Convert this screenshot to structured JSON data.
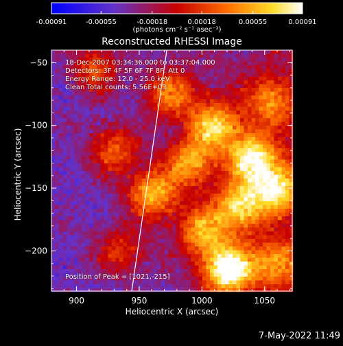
{
  "chart_data": {
    "type": "heatmap",
    "title": "Reconstructed RHESSI Image",
    "xlabel": "Heliocentric X (arcsec)",
    "ylabel": "Heliocentric Y (arcsec)",
    "xlim": [
      880,
      1072
    ],
    "ylim": [
      -232,
      -40
    ],
    "xticks": [
      900,
      950,
      1000,
      1050
    ],
    "yticks": [
      -50,
      -100,
      -150,
      -200
    ],
    "colorbar": {
      "colormap": "red-temperature",
      "range": [
        -0.00091,
        0.00091
      ],
      "tick_values": [
        -0.00091,
        -0.00055,
        -0.00018,
        0.00018,
        0.00055,
        0.00091
      ],
      "tick_labels": [
        "-0.00091",
        "-0.00055",
        "-0.00018",
        "0.00018",
        "0.00055",
        "0.00091"
      ],
      "units_label": "(photons cm⁻² s⁻¹ asec⁻²)"
    },
    "annotations": [
      "18-Dec-2007 03:34:36.000 to 03:37:04.000",
      "Detectors: 3F 4F 5F 6F 7F 8F, Att 0",
      "Energy Range: 12.0 - 25.0 keV",
      "Clean      Total counts: 5.56E+03"
    ],
    "peak_label": "Position of Peak = [1021,-215]",
    "peak": [
      1021,
      -215
    ],
    "limb_line": [
      [
        944,
        -232
      ],
      [
        972,
        -40
      ]
    ],
    "blobs": [
      {
        "x": 1021,
        "y": -215,
        "intensity": 1.0
      },
      {
        "x": 1040,
        "y": -125,
        "intensity": 0.8
      },
      {
        "x": 1060,
        "y": -150,
        "intensity": 0.75
      },
      {
        "x": 1010,
        "y": -100,
        "intensity": 0.7
      },
      {
        "x": 1030,
        "y": -165,
        "intensity": 0.72
      },
      {
        "x": 960,
        "y": -155,
        "intensity": 0.7
      },
      {
        "x": 990,
        "y": -130,
        "intensity": 0.6
      },
      {
        "x": 1000,
        "y": -185,
        "intensity": 0.6
      },
      {
        "x": 975,
        "y": -75,
        "intensity": 0.55
      },
      {
        "x": 930,
        "y": -120,
        "intensity": 0.5
      },
      {
        "x": 915,
        "y": -55,
        "intensity": 0.45
      },
      {
        "x": 1055,
        "y": -80,
        "intensity": 0.5
      },
      {
        "x": 935,
        "y": -200,
        "intensity": 0.4
      },
      {
        "x": 1060,
        "y": -210,
        "intensity": 0.55
      }
    ]
  },
  "footer": {
    "timestamp": "7-May-2022 11:49"
  }
}
